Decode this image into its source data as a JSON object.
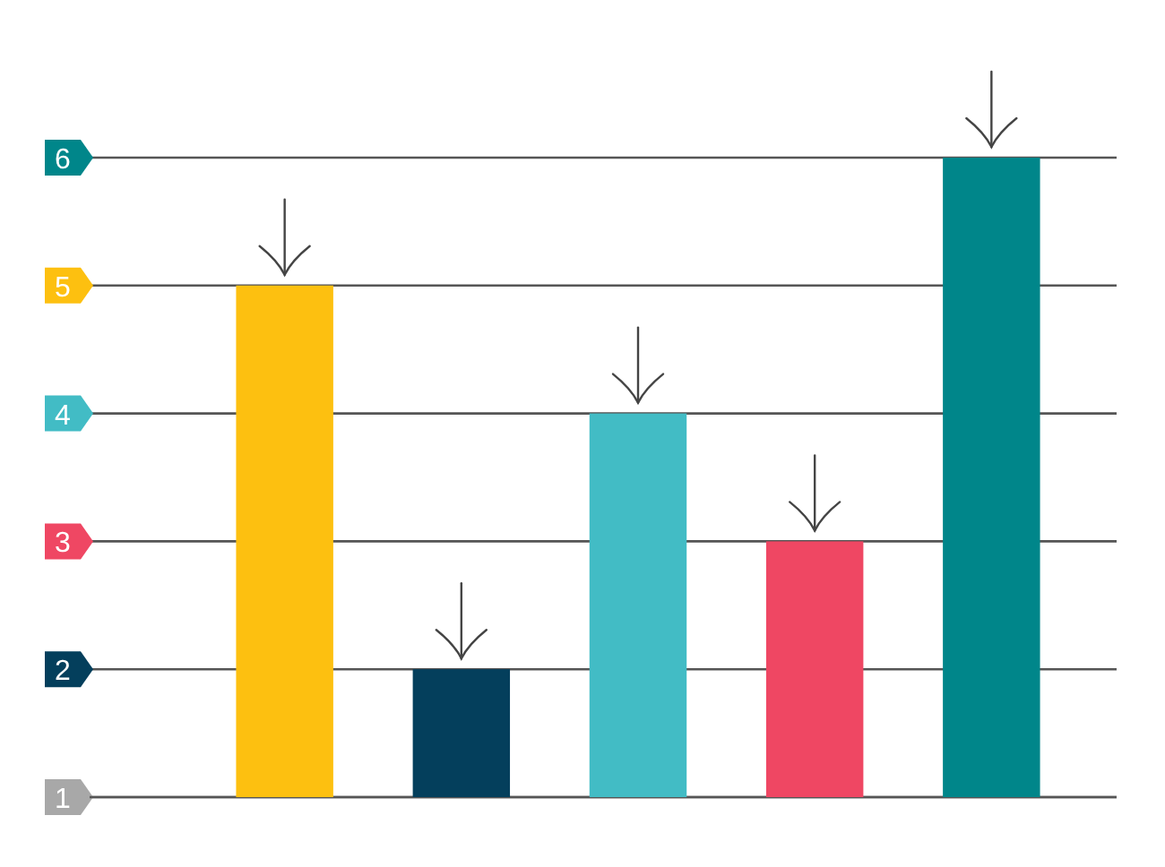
{
  "chart_data": {
    "type": "bar",
    "categories": [
      null,
      null,
      null,
      null,
      null
    ],
    "values": [
      5,
      2,
      4,
      3,
      6
    ],
    "colors": [
      "#fdc010",
      "#043f5c",
      "#42bcc5",
      "#ef4763",
      "#00868a"
    ],
    "ylim": [
      1,
      6
    ],
    "yticks": [
      1,
      2,
      3,
      4,
      5,
      6
    ],
    "grid": "y"
  }
}
